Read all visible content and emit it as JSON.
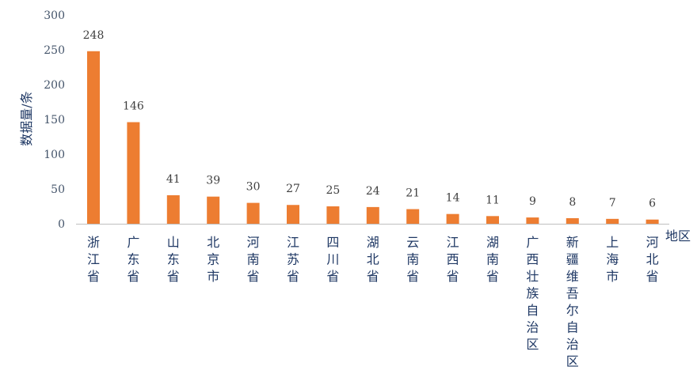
{
  "chart_data": {
    "type": "bar",
    "title": "",
    "xlabel": "地区",
    "ylabel": "数据量/条",
    "ylim": [
      0,
      300
    ],
    "yticks": [
      0,
      50,
      100,
      150,
      200,
      250,
      300
    ],
    "grid": false,
    "legend": "none",
    "bar_color": "#ed7d31",
    "categories": [
      "浙江省",
      "广东省",
      "山东省",
      "北京市",
      "河南省",
      "江苏省",
      "四川省",
      "湖北省",
      "云南省",
      "江西省",
      "湖南省",
      "广西壮族自治区",
      "新疆维吾尔自治区",
      "上海市",
      "河北省"
    ],
    "values": [
      248,
      146,
      41,
      39,
      30,
      27,
      25,
      24,
      21,
      14,
      11,
      9,
      8,
      7,
      6
    ]
  }
}
